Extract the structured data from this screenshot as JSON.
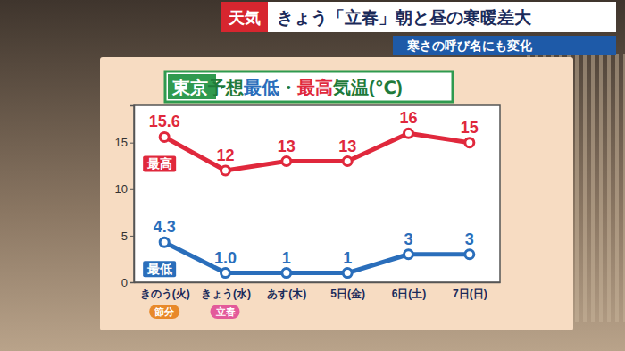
{
  "header": {
    "label": "天気",
    "headline": "きょう「立春」朝と昼の寒暖差大",
    "subheading": "寒さの呼び名にも変化"
  },
  "chart_data": {
    "type": "line",
    "title": "東京 予想最低・最高気温(℃)",
    "categories": [
      "きのう(火)",
      "きょう(水)",
      "あす(木)",
      "5日(金)",
      "6日(土)",
      "7日(日)"
    ],
    "annotations": [
      {
        "text": "節分",
        "category": 0
      },
      {
        "text": "立春",
        "category": 1
      }
    ],
    "series": [
      {
        "name": "最高",
        "color": "#e0283c",
        "values": [
          15.6,
          12,
          13,
          13,
          16,
          15
        ]
      },
      {
        "name": "最低",
        "color": "#2a6ebb",
        "values": [
          4.3,
          1.0,
          1,
          1,
          3,
          3
        ],
        "value_labels": [
          "4.3",
          "1.0",
          "1",
          "1",
          "3",
          "3"
        ]
      }
    ],
    "ylim": [
      0,
      19
    ],
    "yticks": [
      0,
      5,
      10,
      15
    ],
    "grid": false,
    "data_labels": true,
    "marker": "circle"
  }
}
